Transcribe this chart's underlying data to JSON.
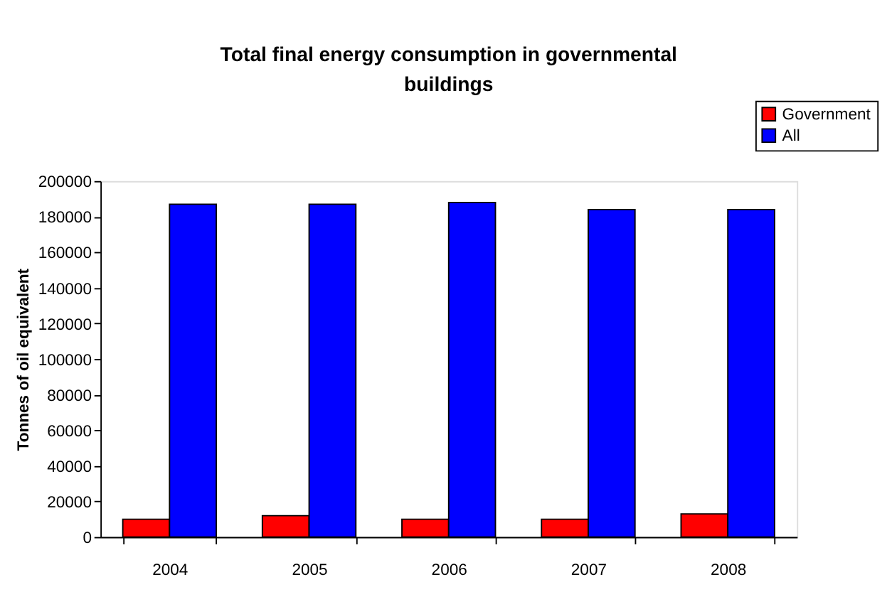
{
  "chart_data": {
    "type": "bar",
    "title": "Total final energy consumption in governmental buildings",
    "ylabel": "Tonnes of oil equivalent",
    "categories": [
      "2004",
      "2005",
      "2006",
      "2007",
      "2008"
    ],
    "series": [
      {
        "name": "Government",
        "color": "#ff0000",
        "values": [
          10000,
          12000,
          10000,
          10000,
          13000
        ]
      },
      {
        "name": "All",
        "color": "#0000ff",
        "values": [
          187000,
          187000,
          188000,
          184000,
          184000
        ]
      }
    ],
    "ylim": [
      0,
      200000
    ],
    "yticks": [
      0,
      20000,
      40000,
      60000,
      80000,
      100000,
      120000,
      140000,
      160000,
      180000,
      200000
    ],
    "grid": false,
    "legend": "top right"
  }
}
